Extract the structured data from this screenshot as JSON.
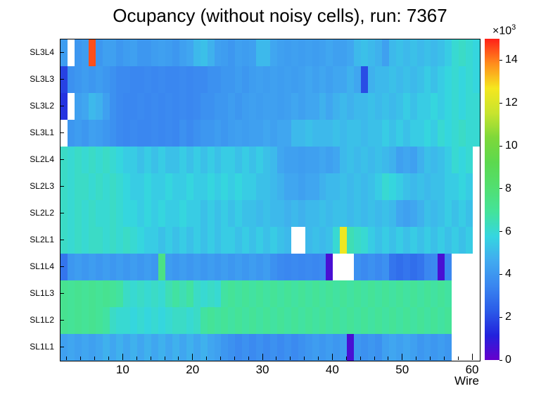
{
  "title": "Ocupancy (without noisy cells), run: 7367",
  "axes": {
    "x_label": "Wire",
    "x_ticks": [
      10,
      20,
      30,
      40,
      50,
      60
    ],
    "x_minor_tick_step": 2,
    "x_range": [
      1,
      61
    ],
    "y_labels_top_to_bottom": [
      "SL3L4",
      "SL3L3",
      "SL3L2",
      "SL3L1",
      "SL2L4",
      "SL2L3",
      "SL2L2",
      "SL2L1",
      "SL1L4",
      "SL1L3",
      "SL1L2",
      "SL1L1"
    ]
  },
  "colorbar": {
    "ticks": [
      0,
      2,
      4,
      6,
      8,
      10,
      12,
      14
    ],
    "tick_unit": 1000,
    "exponent_prefix": "×10",
    "exponent": "3",
    "min": 0,
    "max": 15000,
    "palette": [
      "#6600cc",
      "#2222dd",
      "#2b5ce8",
      "#3a86f0",
      "#41aaf0",
      "#35d6e0",
      "#44e39a",
      "#52df70",
      "#5cd94e",
      "#7ed83a",
      "#c8e42e",
      "#f5e71f",
      "#ff8c1c",
      "#ff2018"
    ]
  },
  "chart_data": {
    "type": "heatmap",
    "title": "Ocupancy (without noisy cells), run: 7367",
    "xlabel": "Wire",
    "x_bins": 60,
    "x_range": [
      1,
      61
    ],
    "rows_top_to_bottom": [
      "SL3L4",
      "SL3L3",
      "SL3L2",
      "SL3L1",
      "SL2L4",
      "SL2L3",
      "SL2L2",
      "SL2L1",
      "SL1L4",
      "SL1L3",
      "SL1L2",
      "SL1L1"
    ],
    "zlim": [
      0,
      15000
    ],
    "empty_cells_rendered_white": true,
    "values": [
      [
        4200,
        null,
        4000,
        4200,
        14500,
        4000,
        4300,
        4300,
        4000,
        4200,
        4300,
        4000,
        4000,
        4200,
        4300,
        4200,
        4000,
        4300,
        4500,
        5000,
        5200,
        4800,
        4300,
        4200,
        4000,
        4300,
        4200,
        4300,
        5000,
        5000,
        4500,
        4300,
        4200,
        4300,
        4200,
        4300,
        4200,
        4300,
        4500,
        4300,
        4300,
        4500,
        5000,
        5200,
        5000,
        4800,
        4300,
        5000,
        5200,
        5000,
        5200,
        5000,
        5200,
        5000,
        5200,
        5500,
        6000,
        6200,
        6000,
        5800
      ],
      [
        1800,
        3800,
        4000,
        4200,
        4000,
        4200,
        4000,
        3800,
        3600,
        3600,
        3500,
        3500,
        3600,
        3500,
        3600,
        3500,
        3500,
        3600,
        3500,
        3600,
        3600,
        3800,
        3800,
        4000,
        4000,
        4200,
        4000,
        4200,
        4300,
        4200,
        4300,
        4200,
        4300,
        4200,
        4300,
        4500,
        4300,
        4500,
        4300,
        4500,
        4500,
        4800,
        4500,
        2000,
        4800,
        5000,
        5000,
        5200,
        5000,
        5200,
        5000,
        5200,
        5500,
        5200,
        5500,
        5800,
        6000,
        5800,
        6000,
        5800
      ],
      [
        1500,
        null,
        4300,
        4500,
        5000,
        4800,
        4300,
        3800,
        3600,
        3500,
        3500,
        3600,
        3500,
        3600,
        3500,
        3600,
        3500,
        3600,
        3500,
        3600,
        3800,
        3800,
        4000,
        4000,
        4200,
        4000,
        4200,
        4300,
        4200,
        4300,
        4300,
        4200,
        4300,
        4500,
        4300,
        4500,
        4500,
        4800,
        4500,
        4800,
        5000,
        4800,
        5000,
        5000,
        5200,
        5000,
        5200,
        5000,
        5200,
        5500,
        5200,
        5500,
        5500,
        5800,
        5500,
        5800,
        6000,
        5800,
        6000,
        6000
      ],
      [
        null,
        4000,
        4200,
        4000,
        4300,
        4200,
        4000,
        3800,
        3600,
        3500,
        3600,
        3500,
        3500,
        3600,
        3500,
        3600,
        3500,
        3800,
        3600,
        3800,
        4000,
        4000,
        4200,
        4000,
        4200,
        4300,
        4200,
        4300,
        4300,
        4500,
        4300,
        4500,
        4500,
        5000,
        5000,
        5200,
        5000,
        5000,
        5000,
        5200,
        5000,
        5200,
        5200,
        5000,
        5200,
        5200,
        5500,
        5200,
        5500,
        5200,
        5500,
        5500,
        5800,
        5500,
        6000,
        5800,
        6000,
        6200,
        6000,
        6000
      ],
      [
        6200,
        6000,
        6200,
        6000,
        6200,
        6000,
        6200,
        6000,
        5800,
        5500,
        5500,
        5200,
        5500,
        5200,
        5500,
        5200,
        5200,
        5500,
        5200,
        5500,
        5200,
        5500,
        5200,
        5500,
        5500,
        5200,
        5500,
        5200,
        5500,
        5200,
        5000,
        4500,
        4300,
        4300,
        4200,
        4300,
        4300,
        4500,
        4300,
        4500,
        5000,
        5200,
        5000,
        5200,
        5000,
        5200,
        5000,
        4800,
        4300,
        4500,
        4300,
        4800,
        5200,
        5000,
        5200,
        5500,
        6000,
        5800,
        6000,
        null
      ],
      [
        6200,
        6000,
        6200,
        6200,
        6000,
        6200,
        6000,
        6200,
        6000,
        5800,
        5500,
        5500,
        5800,
        5500,
        5500,
        5800,
        5500,
        5500,
        5800,
        5500,
        5500,
        5800,
        5500,
        5800,
        5500,
        5800,
        5500,
        5500,
        5200,
        5200,
        5000,
        4800,
        4500,
        4500,
        4300,
        4500,
        4500,
        4800,
        5000,
        5000,
        5200,
        5000,
        5200,
        5000,
        5200,
        5500,
        6000,
        5800,
        5500,
        5200,
        5000,
        5200,
        5000,
        5200,
        5200,
        5500,
        5500,
        5800,
        5500,
        null
      ],
      [
        6200,
        6000,
        6200,
        6000,
        6200,
        6000,
        6000,
        6200,
        6000,
        5800,
        5800,
        5500,
        5800,
        5500,
        5800,
        5500,
        5500,
        5800,
        5500,
        5500,
        5200,
        5500,
        5200,
        5500,
        5200,
        5500,
        5200,
        5200,
        5000,
        5200,
        5000,
        5000,
        4800,
        5000,
        4800,
        5000,
        5000,
        5200,
        5000,
        5200,
        5200,
        5000,
        5200,
        5000,
        5200,
        5000,
        5200,
        5000,
        4500,
        4300,
        4500,
        4800,
        5200,
        5000,
        5200,
        5500,
        5200,
        5500,
        5200,
        null
      ],
      [
        6200,
        6000,
        6200,
        6000,
        6200,
        6200,
        6000,
        6200,
        6000,
        6200,
        6000,
        5800,
        5500,
        5500,
        5200,
        5500,
        5200,
        5500,
        5200,
        5500,
        5200,
        5500,
        5200,
        5500,
        5500,
        5200,
        5500,
        5200,
        5500,
        5200,
        5500,
        5200,
        5000,
        null,
        null,
        5000,
        5200,
        5000,
        5200,
        6000,
        12500,
        6500,
        6200,
        6000,
        5500,
        5200,
        5500,
        5200,
        5500,
        5200,
        5500,
        5200,
        5500,
        5200,
        5500,
        5200,
        5500,
        5200,
        5500,
        null
      ],
      [
        3000,
        4000,
        4200,
        4000,
        4200,
        4000,
        4200,
        4000,
        4200,
        4000,
        4200,
        4000,
        4200,
        4000,
        7500,
        4200,
        4000,
        4200,
        4000,
        4200,
        4000,
        4200,
        4000,
        4200,
        4000,
        4200,
        4000,
        4200,
        4000,
        4200,
        3800,
        3600,
        3500,
        3600,
        3500,
        3600,
        3500,
        3600,
        500,
        null,
        null,
        null,
        3800,
        3600,
        3800,
        3600,
        3800,
        3000,
        2800,
        3000,
        2800,
        3000,
        3500,
        3600,
        500,
        3500,
        null,
        null,
        null,
        null
      ],
      [
        7200,
        7000,
        7200,
        7000,
        7200,
        7000,
        7200,
        7000,
        6800,
        6200,
        6000,
        6200,
        6000,
        6200,
        6000,
        6500,
        6800,
        6500,
        6800,
        6200,
        6000,
        6200,
        6000,
        6800,
        7000,
        6800,
        7000,
        6800,
        7000,
        6800,
        7000,
        6800,
        7000,
        6800,
        7000,
        6800,
        7000,
        6800,
        7000,
        6800,
        7000,
        6800,
        7000,
        6800,
        7000,
        6800,
        7000,
        6800,
        7000,
        6800,
        7000,
        6800,
        7000,
        6800,
        7000,
        6800,
        null,
        null,
        null,
        null
      ],
      [
        7200,
        7000,
        7200,
        7000,
        7200,
        7000,
        6800,
        6200,
        6000,
        6000,
        5800,
        6000,
        5800,
        6000,
        5800,
        6000,
        6200,
        6200,
        6000,
        6200,
        6800,
        7000,
        6800,
        7000,
        6800,
        7000,
        6800,
        7000,
        6800,
        7000,
        6800,
        7000,
        6800,
        7000,
        6800,
        7000,
        6800,
        7000,
        6800,
        7000,
        6800,
        7000,
        6800,
        7000,
        6800,
        7000,
        6800,
        7000,
        6800,
        7000,
        6800,
        7000,
        6800,
        7000,
        6800,
        7000,
        null,
        null,
        null,
        null
      ],
      [
        4300,
        4500,
        4300,
        4500,
        4300,
        4500,
        4800,
        4500,
        4800,
        4500,
        4800,
        4500,
        4800,
        4500,
        4800,
        4500,
        4800,
        4500,
        4800,
        4500,
        4800,
        4500,
        4300,
        4000,
        3800,
        3600,
        3800,
        3600,
        3800,
        3600,
        3800,
        3600,
        3800,
        3600,
        3800,
        4000,
        4200,
        4000,
        4200,
        4000,
        4200,
        500,
        4000,
        3800,
        4000,
        3800,
        4300,
        4500,
        4300,
        4500,
        4300,
        4000,
        4200,
        4000,
        4200,
        4000,
        null,
        null,
        null,
        null
      ]
    ]
  }
}
